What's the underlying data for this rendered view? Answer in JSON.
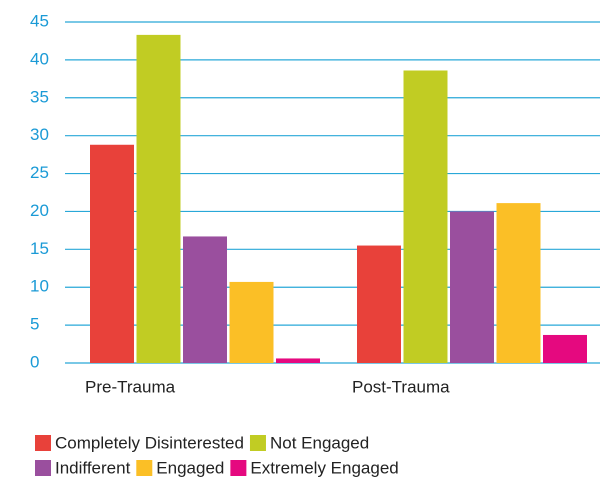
{
  "chart_data": {
    "type": "bar",
    "categories": [
      "Pre-Trauma",
      "Post-Trauma"
    ],
    "series": [
      {
        "name": "Completely Disinterested",
        "color": "#e8413a",
        "values": [
          28.8,
          15.5
        ]
      },
      {
        "name": "Not Engaged",
        "color": "#c1cc23",
        "values": [
          43.3,
          38.6
        ]
      },
      {
        "name": "Indifferent",
        "color": "#9a4f9e",
        "values": [
          16.7,
          20
        ]
      },
      {
        "name": "Engaged",
        "color": "#fbbf26",
        "values": [
          10.7,
          21.1
        ]
      },
      {
        "name": "Extremely Engaged",
        "color": "#e5097f",
        "values": [
          0.6,
          3.7
        ]
      }
    ],
    "ylim": [
      0,
      45
    ],
    "yticks": [
      0,
      5,
      10,
      15,
      20,
      25,
      30,
      35,
      40,
      45
    ],
    "grid": true
  }
}
